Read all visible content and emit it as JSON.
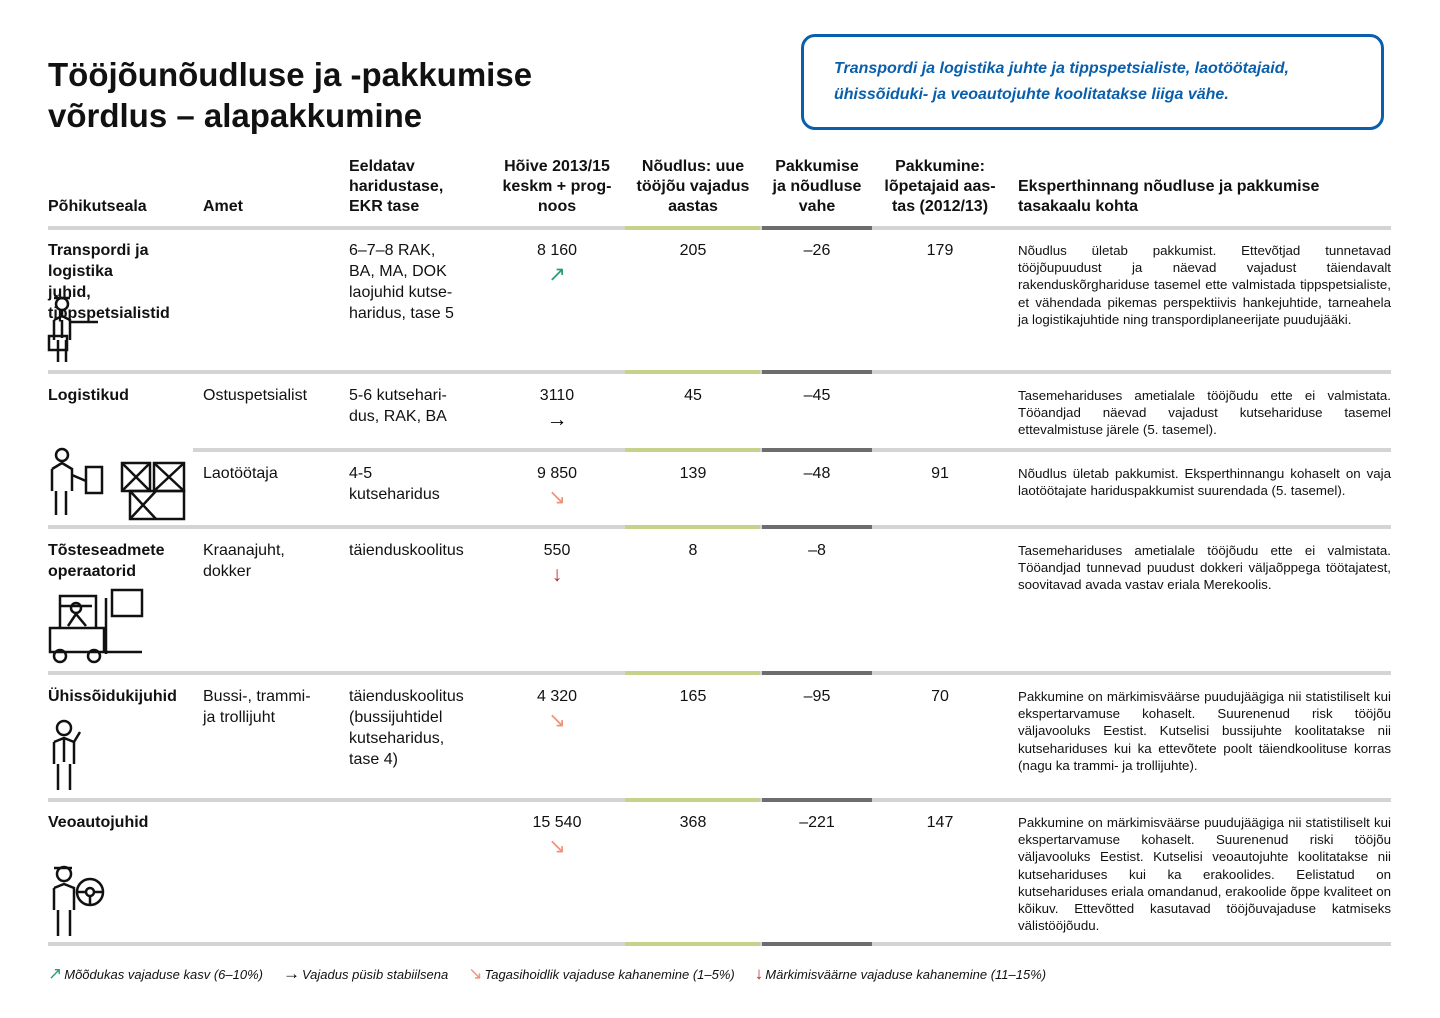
{
  "title": "Tööjõunõudluse ja -pakkumise\nvõrdlus – alapakkumine",
  "callout": "Transpordi ja logistika juhte ja tippspetsialiste, laotöötajaid,\nühissõiduki- ja veoautojuhte koolitatakse liiga vähe.",
  "table": {
    "columns": [
      "Põhikutseala",
      "Amet",
      "Eeldatav\nharidustase,\nEKR tase",
      "Hõive 2013/15\nkeskm + prog-\nnoos",
      "Nõudlus: uue\ntööjõu vajadus\naastas",
      "Pakkumise\nja nõudluse\nvahe",
      "Pakkumine:\nlõpetajaid aas-\ntas (2012/13)",
      "Eksperthinnang nõudluse ja pakkumise\ntasakaalu kohta"
    ],
    "rows": [
      {
        "group": "Transpordi ja logistika\njuhid, tippspetsialistid",
        "haridus": "6–7–8 RAK,\nBA, MA, DOK\nlaojuhid kutse-\nharidus, tase 5",
        "hoive": "8 160",
        "trend": "↗",
        "trend_color": "#2a9d7a",
        "noudlus": "205",
        "vahe": "–26",
        "pakkumine": "179",
        "hinnang": "Nõudlus ületab pakkumist. Ettevõtjad tunnetavad tööjõupuudust ja näevad vajadust täiendavalt rakenduskõrghariduse tasemel ette valmistada tippspetsialiste, et vähendada pikemas perspektiivis hankejuhtide, tarneahela ja logistikajuhtide ning transpordiplaneerijate puudujääki."
      },
      {
        "group": "Logistikud",
        "amet": "Ostuspetsialist",
        "haridus": "5-6 kutsehari-\ndus, RAK, BA",
        "hoive": "3110",
        "trend": "→",
        "trend_color": "#000000",
        "noudlus": "45",
        "vahe": "–45",
        "hinnang": "Tasemehariduses ametialale tööjõudu ette ei valmistata. Tööandjad näevad vajadust kutsehariduse tasemel ettevalmistuse järele (5. tasemel)."
      },
      {
        "amet": "Laotöötaja",
        "haridus": "4-5\nkutseharidus",
        "hoive": "9 850",
        "trend": "↘",
        "trend_color": "#f0937a",
        "noudlus": "139",
        "vahe": "–48",
        "pakkumine": "91",
        "hinnang": "Nõudlus ületab pakkumist. Eksperthinnangu kohaselt on vaja laotöötajate hariduspakkumist suurendada (5. tasemel)."
      },
      {
        "group": "Tõsteseadmete\noperaatorid",
        "amet": "Kraanajuht,\ndokker",
        "haridus": "täienduskoolitus",
        "hoive": "550",
        "trend": "↓",
        "trend_color": "#c0282d",
        "noudlus": "8",
        "vahe": "–8",
        "hinnang": "Tasemehariduses ametialale tööjõudu ette ei valmistata. Tööandjad tunnevad puudust dokkeri väljaõppega töötajatest, soovitavad avada vastav eriala Merekoolis."
      },
      {
        "group": "Ühissõidukijuhid",
        "amet": "Bussi-, trammi-\nja trollijuht",
        "haridus": "täienduskoolitus\n(bussijuhtidel\nkutseharidus,\ntase 4)",
        "hoive": "4 320",
        "trend": "↘",
        "trend_color": "#f0937a",
        "noudlus": "165",
        "vahe": "–95",
        "pakkumine": "70",
        "hinnang": "Pakkumine on märkimisväärse puudujäägiga nii statistiliselt kui ekspertarvamuse kohaselt. Suurenenud risk tööjõu väljavooluks Eestist. Kutselisi bussijuhte koolitatakse nii kutsehariduses kui ka ettevõtete poolt täiendkoolituse korras (nagu ka trammi- ja trollijuhte)."
      },
      {
        "group": "Veoautojuhid",
        "hoive": "15 540",
        "trend": "↘",
        "trend_color": "#f0937a",
        "noudlus": "368",
        "vahe": "–221",
        "pakkumine": "147",
        "hinnang": "Pakkumine on märkimisväärse puudujäägiga nii statistiliselt kui ekspertarvamuse kohaselt. Suurenenud riski tööjõu väljavooluks Eestist. Kutselisi veoautojuhte koolitatakse nii kutsehariduses kui ka erakoolides. Eelistatud on kutsehariduses eriala omandanud, erakoolide õppe kvaliteet on kõikuv. Ettevõtted kasutavad tööjõuvajaduse katmiseks välistööjõudu."
      }
    ]
  },
  "legend": [
    {
      "symbol": "↗",
      "color": "#2a9d7a",
      "text": "Mõõdukas vajaduse kasv (6–10%)"
    },
    {
      "symbol": "→",
      "color": "#000000",
      "text": "Vajadus püsib stabiilsena"
    },
    {
      "symbol": "↘",
      "color": "#f0937a",
      "text": "Tagasihoidlik vajaduse kahanemine (1–5%)"
    },
    {
      "symbol": "↓",
      "color": "#c0282d",
      "text": "Märkimisväärne vajaduse kahanemine (11–15%)"
    }
  ]
}
